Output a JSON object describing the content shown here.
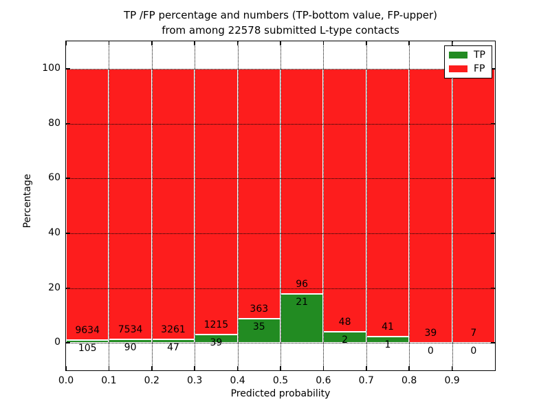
{
  "title": {
    "line1": "TP /FP percentage and numbers (TP-bottom value, FP-upper)",
    "line2": "from among 22578 submitted L-type contacts"
  },
  "axes": {
    "ylabel": "Percentage",
    "xlabel": "Predicted probability",
    "xticks": [
      "0.0",
      "0.1",
      "0.2",
      "0.3",
      "0.4",
      "0.5",
      "0.6",
      "0.7",
      "0.8",
      "0.9"
    ],
    "xtick_values": [
      0.0,
      0.1,
      0.2,
      0.3,
      0.4,
      0.5,
      0.6,
      0.7,
      0.8,
      0.9
    ],
    "yticks": [
      "0",
      "20",
      "40",
      "60",
      "80",
      "100"
    ],
    "ytick_values": [
      0,
      20,
      40,
      60,
      80,
      100
    ],
    "xlim": [
      0.0,
      1.0
    ],
    "ylim": [
      -10,
      110
    ],
    "grid": true,
    "grid_style": "dotted"
  },
  "legend": {
    "position": "upper-right",
    "items": [
      {
        "label": "TP",
        "color": "#228b22"
      },
      {
        "label": "FP",
        "color": "#fd1d1d"
      }
    ]
  },
  "chart_data": {
    "type": "bar",
    "stacked": true,
    "title": "TP /FP percentage and numbers (TP-bottom value, FP-upper) from among 22578 submitted L-type contacts",
    "xlabel": "Predicted probability",
    "ylabel": "Percentage",
    "xlim": [
      0.0,
      1.0
    ],
    "ylim": [
      -10,
      110
    ],
    "total_submitted": 22578,
    "bin_edges": [
      0.0,
      0.1,
      0.2,
      0.3,
      0.4,
      0.5,
      0.6,
      0.7,
      0.8,
      0.9,
      1.0
    ],
    "series": [
      {
        "name": "TP",
        "color": "#228b22",
        "counts": [
          105,
          90,
          47,
          39,
          35,
          21,
          2,
          1,
          0,
          0
        ],
        "percent": [
          1.08,
          1.18,
          1.42,
          3.11,
          8.79,
          17.95,
          4.0,
          2.38,
          0.0,
          0.0
        ]
      },
      {
        "name": "FP",
        "color": "#fd1d1d",
        "counts": [
          9634,
          7534,
          3261,
          1215,
          363,
          96,
          48,
          41,
          39,
          7
        ],
        "percent": [
          98.92,
          98.82,
          98.58,
          96.89,
          91.21,
          82.05,
          96.0,
          97.62,
          100.0,
          100.0
        ]
      }
    ]
  }
}
